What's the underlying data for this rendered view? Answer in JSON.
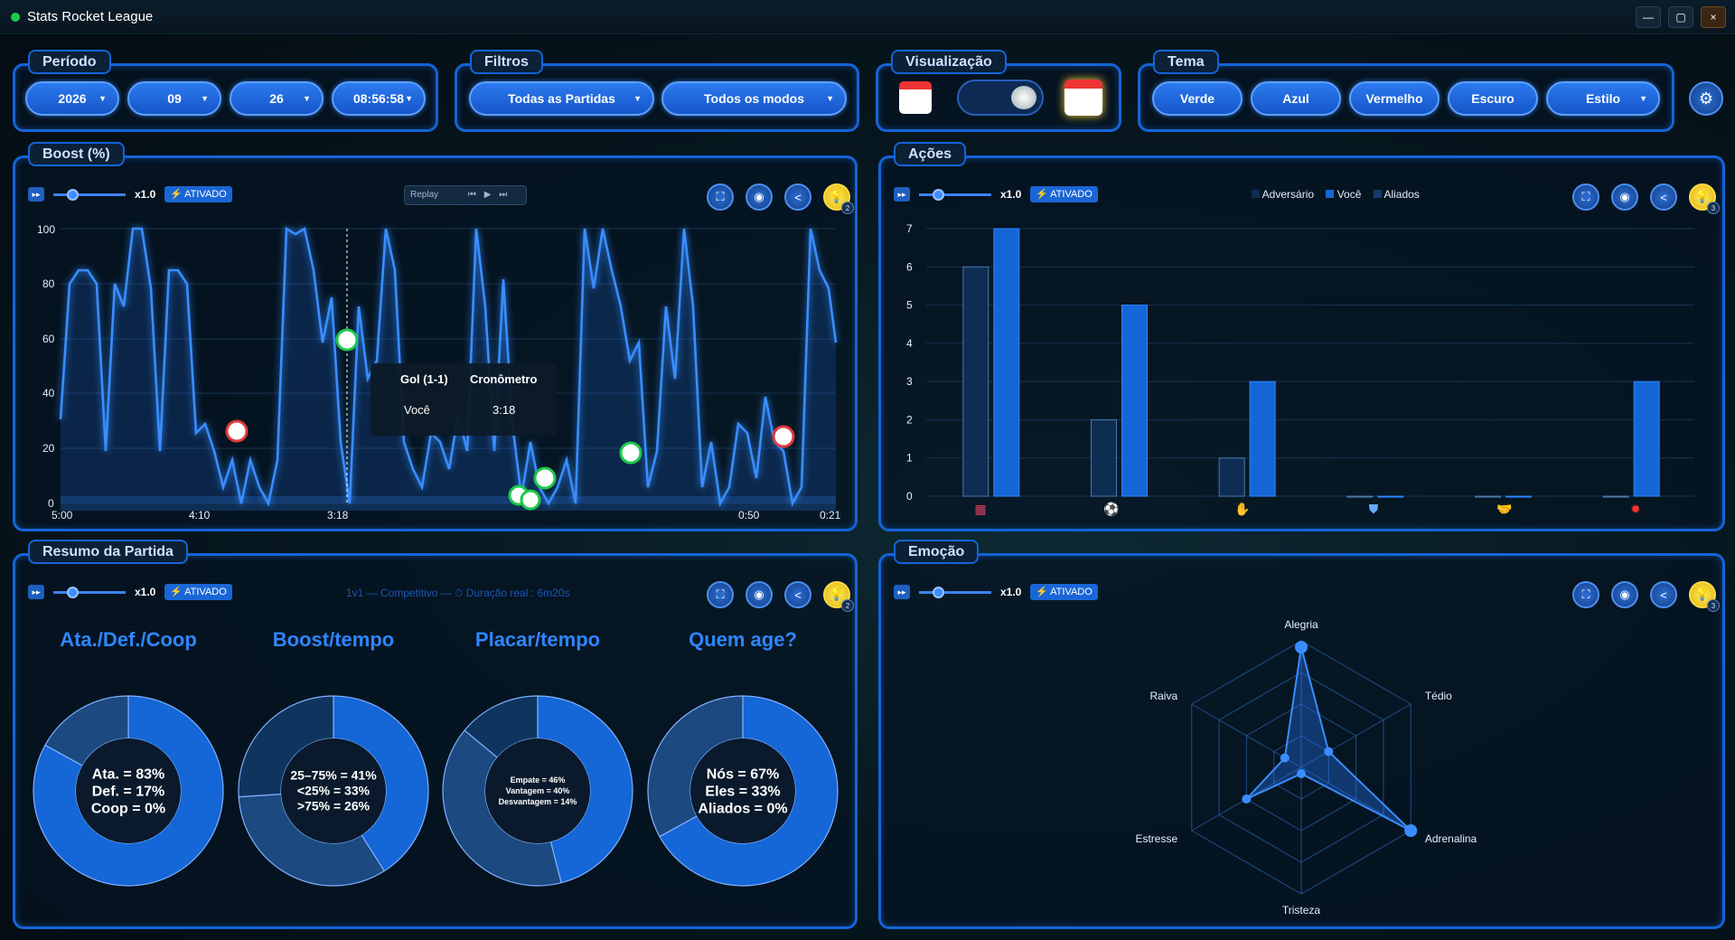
{
  "window": {
    "title": "Stats Rocket League",
    "buttons": {
      "minimize": "—",
      "maximize": "▢",
      "close": "×"
    }
  },
  "periodo": {
    "title": "Período",
    "year": "2026",
    "month": "09",
    "day": "26",
    "time": "08:56:58"
  },
  "filtros": {
    "title": "Filtros",
    "partidas": "Todas as Partidas",
    "modos": "Todos os modos"
  },
  "visualizacao": {
    "title": "Visualização"
  },
  "tema": {
    "title": "Tema",
    "options": [
      "Verde",
      "Azul",
      "Vermelho",
      "Escuro",
      "Estilo"
    ]
  },
  "toolbar": {
    "speed": "x1.0",
    "status": "⚡ ATIVADO",
    "replay": "Replay"
  },
  "boost": {
    "title": "Boost (%)",
    "badge": "2",
    "chart_data": {
      "type": "line",
      "y_ticks": [
        "100",
        "80",
        "60",
        "40",
        "20",
        "0"
      ],
      "ylim": [
        0,
        100
      ],
      "x_labels": [
        "5:00",
        "4:10",
        "3:18",
        "0:50",
        "0:21"
      ],
      "tooltip": {
        "title": "Gol (1-1)",
        "col2": "Cronômetro",
        "player": "Você",
        "time": "3:18"
      }
    }
  },
  "acoes": {
    "title": "Ações",
    "badge": "3",
    "legend": [
      "Adversário",
      "Você",
      "Aliados"
    ],
    "chart_data": {
      "type": "bar",
      "categories": [
        "save",
        "goal",
        "shot",
        "defense",
        "assist",
        "demo"
      ],
      "series": [
        {
          "name": "Adversário",
          "values": [
            6,
            2,
            1,
            0,
            0,
            0
          ]
        },
        {
          "name": "Você",
          "values": [
            7,
            5,
            3,
            0,
            0,
            3
          ]
        }
      ],
      "ylim": [
        0,
        7
      ],
      "y_ticks": [
        "0",
        "1",
        "2",
        "3",
        "4",
        "5",
        "6",
        "7"
      ],
      "colors": [
        "#0d2e52",
        "#1566d6"
      ]
    }
  },
  "resumo": {
    "title": "Resumo da Partida",
    "badge": "2",
    "info": "1v1 — Competitivo — ⏱ Duração real : 6m20s",
    "charts": [
      {
        "title": "Ata./Def./Coop",
        "lines": [
          "Ata. = 83%",
          "Def. = 17%",
          "Coop = 0%"
        ],
        "values": [
          83,
          17,
          0
        ]
      },
      {
        "title": "Boost/tempo",
        "lines": [
          "25–75% = 41%",
          "<25% = 33%",
          ">75% = 26%"
        ],
        "values": [
          41,
          33,
          26
        ]
      },
      {
        "title": "Placar/tempo",
        "lines": [
          "Empate = 46%",
          "Vantagem = 40%",
          "Desvantagem = 14%"
        ],
        "values": [
          46,
          40,
          14
        ]
      },
      {
        "title": "Quem age?",
        "lines": [
          "Nós = 67%",
          "Eles = 33%",
          "Aliados = 0%"
        ],
        "values": [
          67,
          33,
          0
        ]
      }
    ]
  },
  "emocao": {
    "title": "Emoção",
    "badge": "3",
    "chart_data": {
      "type": "radar",
      "axes": [
        "Alegria",
        "Tédio",
        "Adrenalina",
        "Tristeza",
        "Estresse",
        "Raiva"
      ],
      "values": [
        0.95,
        0.25,
        1.0,
        0.05,
        0.5,
        0.15
      ]
    }
  }
}
